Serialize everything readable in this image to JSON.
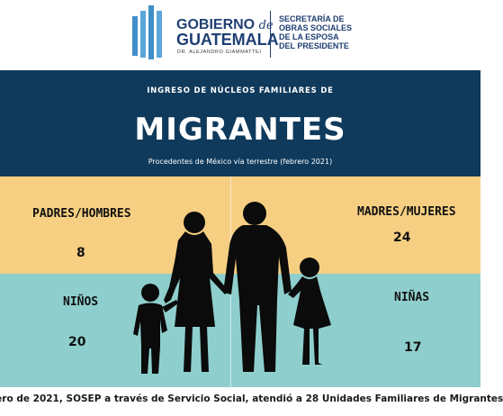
{
  "header": {
    "logo_line1": "GOBIERNO",
    "logo_de": "de",
    "logo_line2": "GUATEMALA",
    "logo_line3": "DR. ALEJANDRO GIAMMATTEI",
    "secretaria": [
      "SECRETARÍA DE",
      "OBRAS SOCIALES",
      "DE LA ESPOSA",
      "DEL PRESIDENTE"
    ],
    "logo_color": "#3f8fc9",
    "text_color": "#1f3f73"
  },
  "banner": {
    "subtitle": "INGRESO DE NÚCLEOS FAMILIARES DE",
    "title": "MIGRANTES",
    "origin": "Procedentes de México vía terrestre (febrero 2021)",
    "background": "#0f3a5c"
  },
  "stats": {
    "padres_label": "PADRES/HOMBRES",
    "padres_value": "8",
    "madres_label": "MADRES/MUJERES",
    "madres_value": "24",
    "ninos_label": "NIÑOS",
    "ninos_value": "20",
    "ninas_label": "NIÑAS",
    "ninas_value": "17",
    "yellow": "#f6cf82",
    "teal": "#8ecfcd"
  },
  "illustration": {
    "icon": "family-silhouette-icon"
  },
  "footer": {
    "text": "rero de 2021, SOSEP a través de Servicio Social, atendió a 28 Unidades Familiares de Migrantes"
  }
}
